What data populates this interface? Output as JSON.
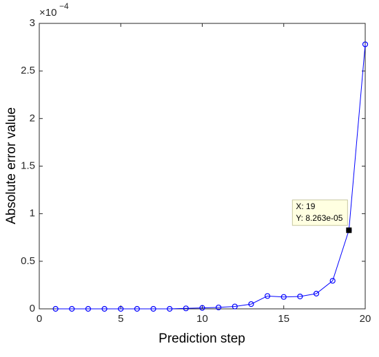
{
  "chart_data": {
    "type": "line",
    "x_label": "Prediction step",
    "y_label": "Absolute error value",
    "y_multiplier": {
      "base": "×10",
      "exponent": "−4"
    },
    "x": [
      1,
      2,
      3,
      4,
      5,
      6,
      7,
      8,
      9,
      10,
      11,
      12,
      13,
      14,
      15,
      16,
      17,
      18,
      19,
      20
    ],
    "series": [
      {
        "color": "#0000ff",
        "values": [
          0,
          0,
          0,
          0,
          0,
          0,
          0,
          0,
          0.005,
          0.01,
          0.015,
          0.025,
          0.05,
          0.135,
          0.125,
          0.13,
          0.16,
          0.295,
          0.8263,
          2.78
        ]
      }
    ],
    "xlim": [
      0,
      20
    ],
    "xticks": [
      0,
      5,
      10,
      15,
      20
    ],
    "ylim": [
      0,
      3
    ],
    "yticks": [
      0,
      0.5,
      1,
      1.5,
      2,
      2.5,
      3
    ],
    "datatip": {
      "x": 19,
      "y": 0.8263,
      "lines": [
        "X: 19",
        "Y: 8.263e-05"
      ]
    }
  }
}
